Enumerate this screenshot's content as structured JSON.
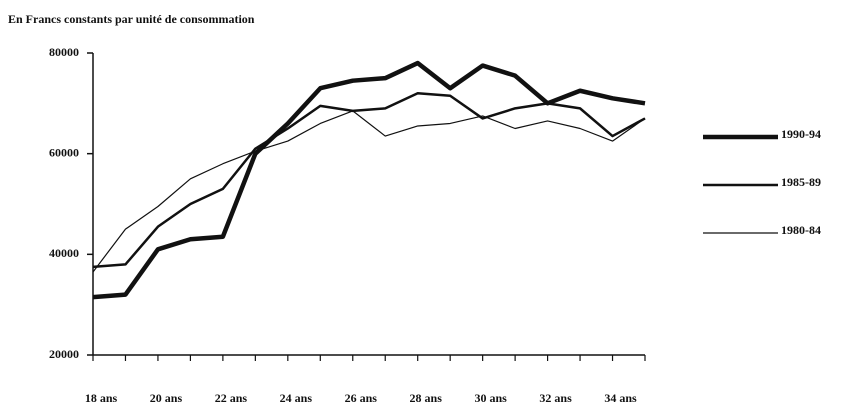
{
  "chart_data": {
    "type": "line",
    "title": "En Francs constants par unité de consommation",
    "categories": [
      "18 ans",
      null,
      "20 ans",
      null,
      "22 ans",
      null,
      "24 ans",
      null,
      "26 ans",
      null,
      "28 ans",
      null,
      "30 ans",
      null,
      "32 ans",
      null,
      "34 ans",
      null
    ],
    "ylim": [
      20000,
      80000
    ],
    "yticks": [
      20000,
      40000,
      60000,
      80000
    ],
    "series": [
      {
        "name": "1990-94",
        "color": "#111111",
        "values": [
          31500,
          32000,
          41000,
          43000,
          43500,
          60000,
          66000,
          73000,
          74500,
          75000,
          78000,
          73000,
          77500,
          75500,
          70000,
          72500,
          71000,
          70000
        ]
      },
      {
        "name": "1985-89",
        "color": "#111111",
        "values": [
          37500,
          38000,
          45500,
          50000,
          53000,
          61000,
          65000,
          69500,
          68500,
          69000,
          72000,
          71500,
          67000,
          69000,
          70000,
          69000,
          63500,
          67000
        ]
      },
      {
        "name": "1980-84",
        "color": "#111111",
        "values": [
          36500,
          45000,
          49500,
          55000,
          58000,
          60500,
          62500,
          66000,
          68500,
          63500,
          65500,
          66000,
          67500,
          65000,
          66500,
          65000,
          62500,
          67000
        ]
      }
    ]
  }
}
